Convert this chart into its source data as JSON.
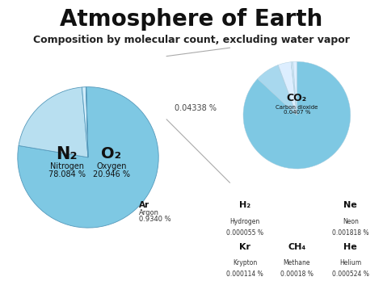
{
  "title": "Atmosphere of Earth",
  "subtitle": "Composition by molecular count, excluding water vapor",
  "bg_color": "#ffffff",
  "main_pie": {
    "values": [
      78.084,
      20.946,
      0.934,
      0.04338
    ],
    "colors": [
      "#7ec8e3",
      "#b8dff0",
      "#d0ecfa",
      "#e8f6ff"
    ],
    "n2": {
      "symbol": "N₂",
      "name": "Nitrogen",
      "pct": "78.084 %"
    },
    "o2": {
      "symbol": "O₂",
      "name": "Oxygen",
      "pct": "20.946 %"
    },
    "ar": {
      "symbol": "Ar",
      "name": "Argon",
      "pct": "0.9340 %"
    },
    "other_pct": "0.04338 %"
  },
  "small_pie": {
    "values": [
      0.0407,
      0.003433,
      5.5e-05,
      0.001818,
      0.000114,
      0.00018,
      0.000524
    ],
    "colors": [
      "#7ec8e3",
      "#a8d8ee",
      "#ddeeff",
      "#ddeeff",
      "#ddeeff",
      "#ddeeff",
      "#ddeeff"
    ],
    "co2": {
      "symbol": "CO₂",
      "name": "Carbon dioxide",
      "pct": "0.0407 %"
    },
    "h2": {
      "symbol": "H₂",
      "name": "Hydrogen",
      "pct": "0.000055 %"
    },
    "ne": {
      "symbol": "Ne",
      "name": "Neon",
      "pct": "0.001818 %"
    },
    "kr": {
      "symbol": "Kr",
      "name": "Krypton",
      "pct": "0.000114 %"
    },
    "ch4": {
      "symbol": "CH₄",
      "name": "Methane",
      "pct": "0.00018 %"
    },
    "he": {
      "symbol": "He",
      "name": "Helium",
      "pct": "0.000524 %"
    }
  },
  "connector_label": "0.04338 %",
  "title_fontsize": 20,
  "subtitle_fontsize": 9
}
